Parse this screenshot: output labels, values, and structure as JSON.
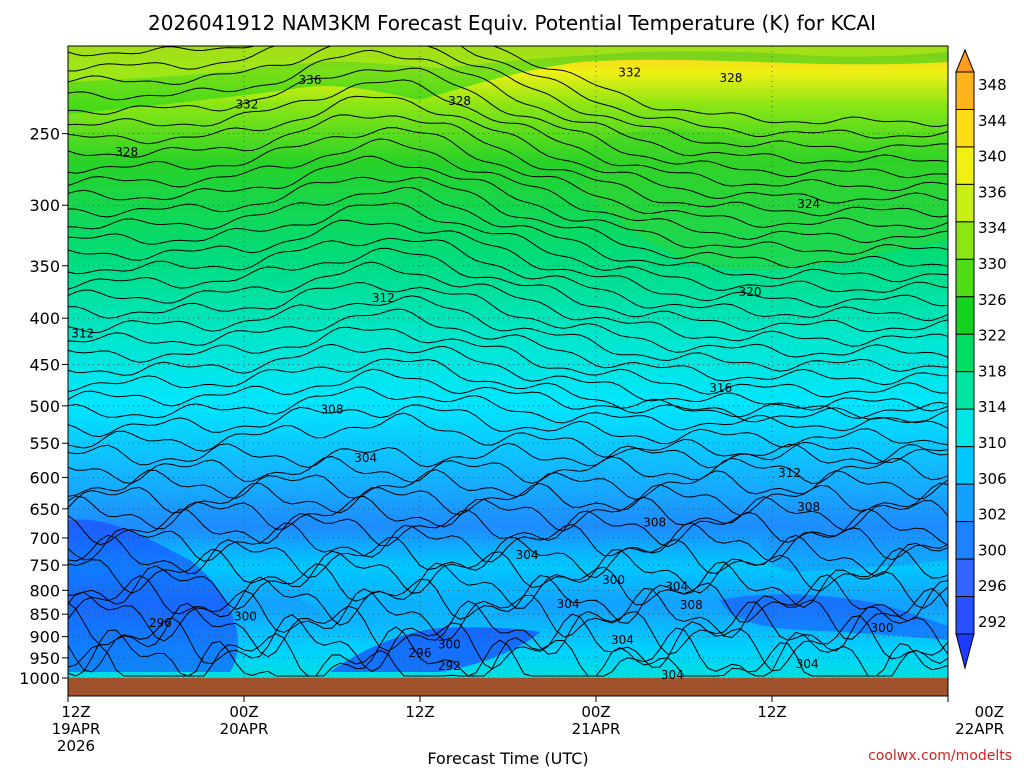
{
  "chart_data": {
    "type": "heatmap",
    "title": "2026041912 NAM3KM Forecast Equiv. Potential Temperature (K) for KCAI",
    "xlabel": "Forecast Time (UTC)",
    "ylabel": "",
    "y_axis_scale": "log-pressure (hPa), inverted",
    "ylim": [
      1000,
      200
    ],
    "y_ticks": [
      250,
      300,
      350,
      400,
      450,
      500,
      550,
      600,
      650,
      700,
      750,
      800,
      850,
      900,
      950,
      1000
    ],
    "x_ticks": [
      {
        "hours": 0,
        "line1": "12Z",
        "line2": "19APR",
        "line3": "2026"
      },
      {
        "hours": 12,
        "line1": "00Z",
        "line2": "20APR",
        "line3": ""
      },
      {
        "hours": 24,
        "line1": "12Z",
        "line2": "",
        "line3": ""
      },
      {
        "hours": 36,
        "line1": "00Z",
        "line2": "21APR",
        "line3": ""
      },
      {
        "hours": 48,
        "line1": "12Z",
        "line2": "",
        "line3": ""
      },
      {
        "hours": 60,
        "line1": "00Z",
        "line2": "22APR",
        "line3": ""
      }
    ],
    "xlim": [
      0,
      60
    ],
    "grid": true,
    "colorbar": {
      "placement": "right",
      "units": "K",
      "levels": [
        292,
        296,
        300,
        302,
        306,
        310,
        314,
        318,
        322,
        326,
        330,
        334,
        336,
        340,
        344,
        348
      ],
      "colors": [
        "#1e3cff",
        "#2850ff",
        "#3264ff",
        "#1e82ff",
        "#14a0ff",
        "#00c8ff",
        "#00e6e6",
        "#00e6a0",
        "#00dc64",
        "#14d21e",
        "#50dc14",
        "#8ce614",
        "#c8f014",
        "#f0f014",
        "#ffdc14",
        "#ffb41e",
        "#ff9b1e"
      ]
    },
    "contour_labels": [
      {
        "value": "336",
        "hours": 16.5,
        "hpa": 218
      },
      {
        "value": "332",
        "hours": 12.2,
        "hpa": 232
      },
      {
        "value": "328",
        "hours": 26.7,
        "hpa": 230
      },
      {
        "value": "332",
        "hours": 38.3,
        "hpa": 214
      },
      {
        "value": "328",
        "hours": 45.2,
        "hpa": 217
      },
      {
        "value": "328",
        "hours": 4.0,
        "hpa": 262
      },
      {
        "value": "324",
        "hours": 50.5,
        "hpa": 299
      },
      {
        "value": "320",
        "hours": 46.5,
        "hpa": 374
      },
      {
        "value": "312",
        "hours": 21.5,
        "hpa": 380
      },
      {
        "value": "312",
        "hours": 1.0,
        "hpa": 416
      },
      {
        "value": "316",
        "hours": 44.5,
        "hpa": 478
      },
      {
        "value": "308",
        "hours": 18.0,
        "hpa": 505
      },
      {
        "value": "304",
        "hours": 20.3,
        "hpa": 571
      },
      {
        "value": "312",
        "hours": 49.2,
        "hpa": 593
      },
      {
        "value": "308",
        "hours": 50.5,
        "hpa": 647
      },
      {
        "value": "308",
        "hours": 40.0,
        "hpa": 673
      },
      {
        "value": "304",
        "hours": 31.3,
        "hpa": 731
      },
      {
        "value": "300",
        "hours": 37.2,
        "hpa": 779
      },
      {
        "value": "304",
        "hours": 41.5,
        "hpa": 792
      },
      {
        "value": "304",
        "hours": 34.1,
        "hpa": 828
      },
      {
        "value": "308",
        "hours": 42.5,
        "hpa": 830
      },
      {
        "value": "300",
        "hours": 12.1,
        "hpa": 855
      },
      {
        "value": "296",
        "hours": 6.3,
        "hpa": 869
      },
      {
        "value": "300",
        "hours": 26.0,
        "hpa": 918
      },
      {
        "value": "296",
        "hours": 24.0,
        "hpa": 938
      },
      {
        "value": "304",
        "hours": 37.8,
        "hpa": 908
      },
      {
        "value": "300",
        "hours": 55.5,
        "hpa": 880
      },
      {
        "value": "292",
        "hours": 26.0,
        "hpa": 970
      },
      {
        "value": "304",
        "hours": 50.4,
        "hpa": 965
      },
      {
        "value": "304",
        "hours": 41.2,
        "hpa": 993
      }
    ],
    "surface_fill_color": "#a0522d"
  },
  "credit": "coolwx.com/modelts"
}
